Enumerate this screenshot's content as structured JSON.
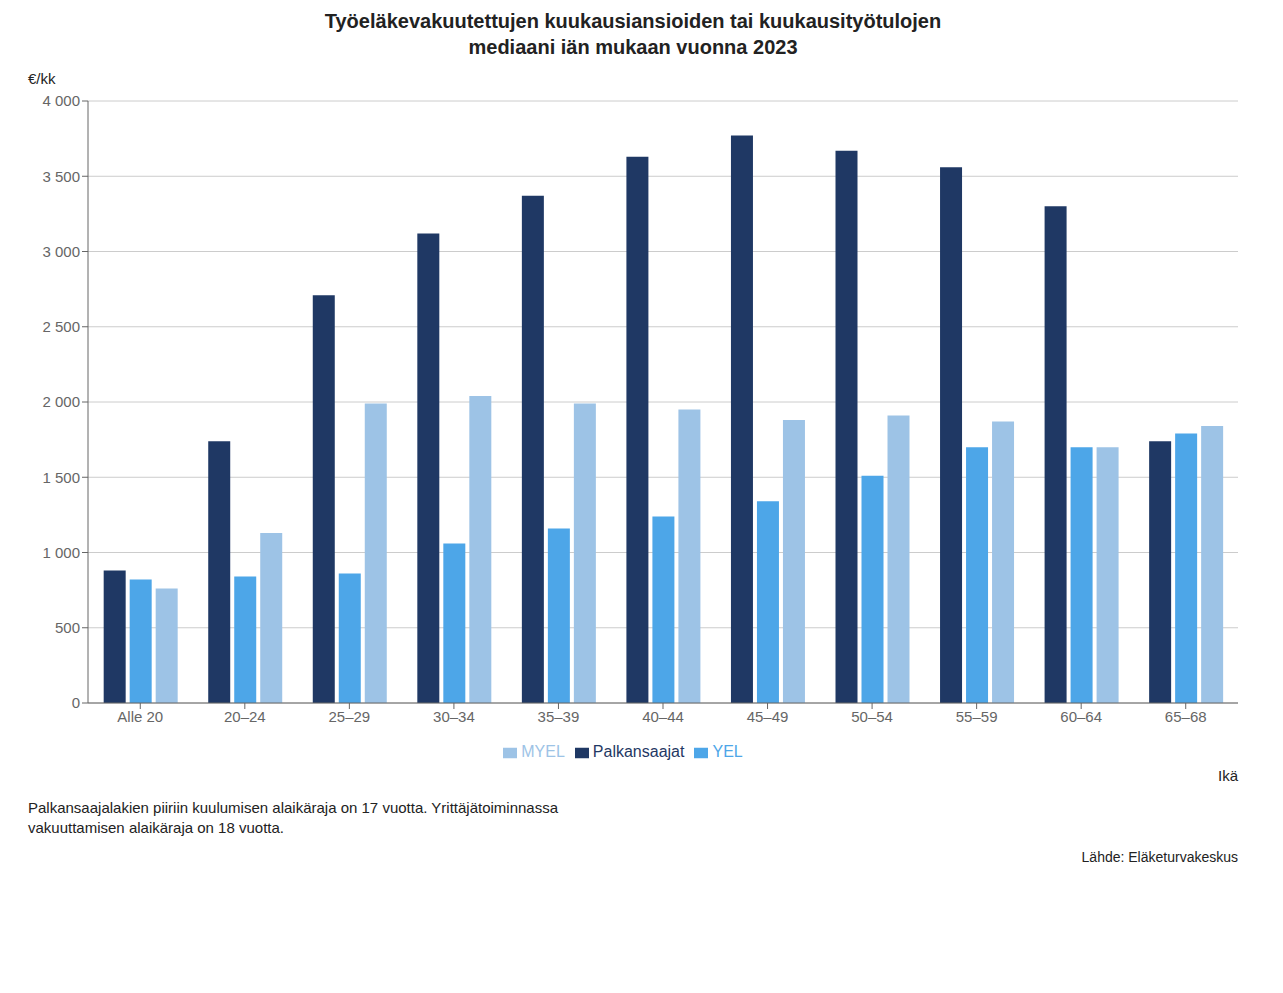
{
  "chart_data": {
    "type": "bar",
    "title": "Työeläkevakuutettujen kuukausiansioiden tai kuukausityötulojen\nmediaani iän mukaan vuonna 2023",
    "y_label": "€/kk",
    "x_label": "Ikä",
    "categories": [
      "Alle 20",
      "20–24",
      "25–29",
      "30–34",
      "35–39",
      "40–44",
      "45–49",
      "50–54",
      "55–59",
      "60–64",
      "65–68"
    ],
    "series": [
      {
        "name": "Palkansaajat",
        "color": "#1F3864",
        "values": [
          880,
          1740,
          2710,
          3120,
          3370,
          3630,
          3770,
          3670,
          3560,
          3300,
          1740
        ]
      },
      {
        "name": "YEL",
        "color": "#4DA6E8",
        "values": [
          820,
          840,
          860,
          1060,
          1160,
          1240,
          1340,
          1510,
          1700,
          1700,
          1790
        ]
      },
      {
        "name": "MYEL",
        "color": "#9DC3E6",
        "values": [
          760,
          1130,
          1990,
          2040,
          1990,
          1950,
          1880,
          1910,
          1870,
          1700,
          1840
        ]
      }
    ],
    "ylim": [
      0,
      4000
    ],
    "yticks": [
      0,
      500,
      {
        "value": 1000,
        "label": "1 000"
      },
      {
        "value": 1500,
        "label": "1 500"
      },
      {
        "value": 2000,
        "label": "2 000"
      },
      {
        "value": 2500,
        "label": "2 500"
      },
      {
        "value": 3000,
        "label": "3 000"
      },
      {
        "value": 3500,
        "label": "3 500"
      },
      {
        "value": 4000,
        "label": "4 000"
      }
    ],
    "grid": true,
    "legend": "bottom",
    "annotations": [
      "Palkansaajalakien piiriin kuulumisen alaikäraja on 17 vuotta. Yrittäjätoiminnassa\nvakuuttamisen alaikäraja on 18 vuotta.",
      "Lähde: Eläketurvakeskus"
    ]
  }
}
